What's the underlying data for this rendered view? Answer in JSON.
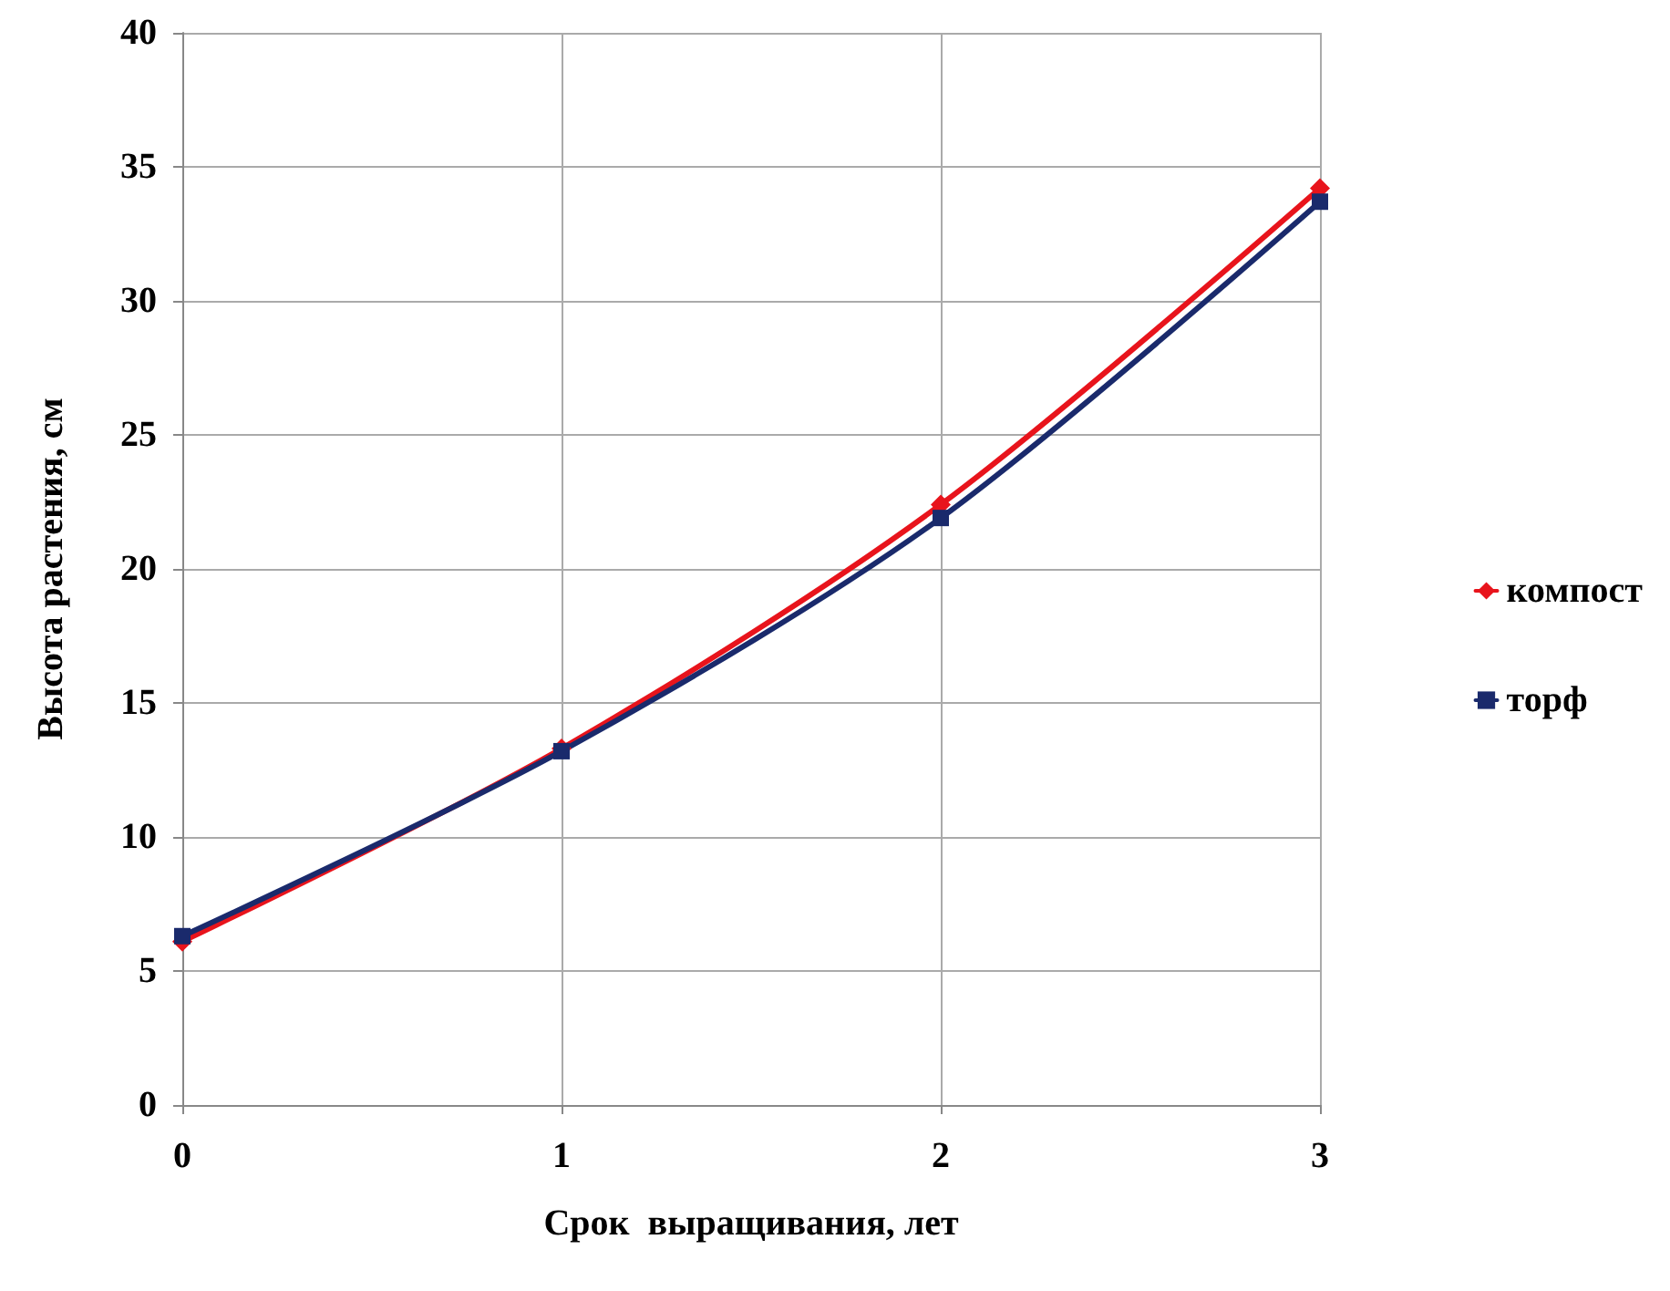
{
  "chart_data": {
    "type": "line",
    "xlabel": "Срок  выращивания, лет",
    "ylabel": "Высота растения, см",
    "x": [
      0,
      1,
      2,
      3
    ],
    "xlim": [
      0,
      3
    ],
    "xticks": [
      0,
      1,
      2,
      3
    ],
    "ylim": [
      0,
      40
    ],
    "yticks": [
      0,
      5,
      10,
      15,
      20,
      25,
      30,
      35,
      40
    ],
    "grid": true,
    "legend": "right",
    "line_style": "solid",
    "series": [
      {
        "name": "компост",
        "color": "#e8141c",
        "marker": "diamond",
        "values": [
          6.1,
          13.3,
          22.4,
          34.2
        ]
      },
      {
        "name": "торф",
        "color": "#1a2a6c",
        "marker": "square",
        "values": [
          6.3,
          13.2,
          21.9,
          33.7
        ]
      }
    ]
  }
}
